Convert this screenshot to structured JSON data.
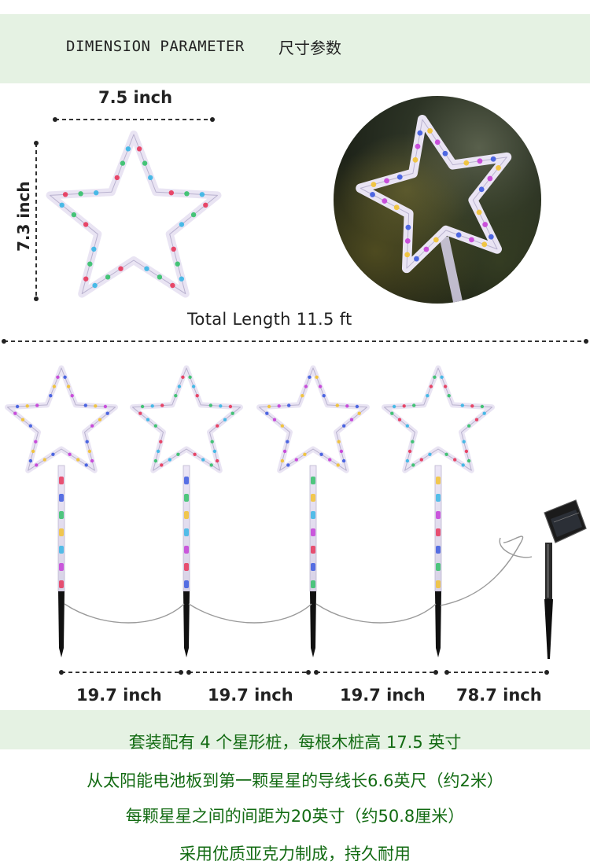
{
  "header": {
    "title_en": "DIMENSION PARAMETER",
    "title_cn": "尺寸参数"
  },
  "dimensions": {
    "width_label": "7.5 inch",
    "height_label": "7.3 inch",
    "total_length_label": "Total Length 11.5 ft"
  },
  "distances": [
    {
      "label": "19.7 inch"
    },
    {
      "label": "19.7 inch"
    },
    {
      "label": "19.7 inch"
    },
    {
      "label": "78.7 inch"
    }
  ],
  "description_lines": [
    "套装配有 4 个星形桩，每根木桩高 17.5 英寸",
    "从太阳能电池板到第一颗星星的导线长6.6英尺（约2米）",
    "每颗星星之间的间距为20英寸（约50.8厘米）",
    "采用优质亚克力制成，持久耐用"
  ],
  "colors": {
    "header_bg": "#e5f2e3",
    "description_text": "#136b13",
    "led_red": "#e8365a",
    "led_blue": "#3d5ae0",
    "led_green": "#34c16a",
    "led_yellow": "#f2c232",
    "led_cyan": "#39b6e6",
    "led_magenta": "#c63fd8"
  },
  "icons": {
    "star_light": "star-light-icon",
    "solar_panel": "solar-panel-icon"
  }
}
